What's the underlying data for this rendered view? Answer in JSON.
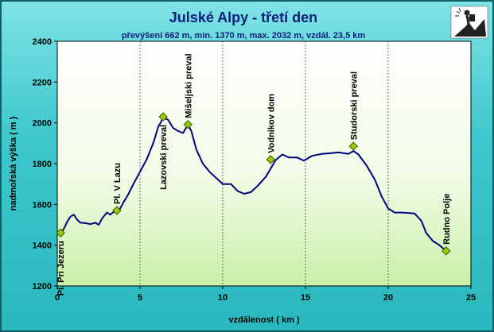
{
  "chart_data": {
    "type": "line",
    "title": "Julské Alpy - třetí den",
    "subtitle": "převýšení 662 m, min. 1370 m, max. 2032 m, vzdál. 23,5 km",
    "xlabel": "vzdálenost ( km )",
    "ylabel": "nadmořská výška ( m )",
    "xlim": [
      0,
      25
    ],
    "ylim": [
      1200,
      2400
    ],
    "xticks": [
      0,
      5,
      10,
      15,
      20,
      25
    ],
    "yticks": [
      1200,
      1400,
      1600,
      1800,
      2000,
      2200,
      2400
    ],
    "grid": "vertical dashed",
    "line_color": "#000080",
    "marker_color": "#99cc00",
    "profile": [
      [
        0.2,
        1460
      ],
      [
        0.4,
        1480
      ],
      [
        0.6,
        1515
      ],
      [
        0.8,
        1540
      ],
      [
        1.0,
        1550
      ],
      [
        1.2,
        1525
      ],
      [
        1.4,
        1510
      ],
      [
        1.7,
        1508
      ],
      [
        2.0,
        1503
      ],
      [
        2.3,
        1510
      ],
      [
        2.5,
        1500
      ],
      [
        2.7,
        1530
      ],
      [
        3.0,
        1560
      ],
      [
        3.2,
        1550
      ],
      [
        3.5,
        1568
      ],
      [
        3.8,
        1580
      ],
      [
        4.0,
        1610
      ],
      [
        4.3,
        1650
      ],
      [
        4.6,
        1700
      ],
      [
        5.0,
        1760
      ],
      [
        5.4,
        1820
      ],
      [
        5.8,
        1900
      ],
      [
        6.1,
        1980
      ],
      [
        6.4,
        2025
      ],
      [
        6.7,
        2015
      ],
      [
        7.0,
        1975
      ],
      [
        7.3,
        1960
      ],
      [
        7.6,
        1950
      ],
      [
        7.9,
        1992
      ],
      [
        8.1,
        1960
      ],
      [
        8.4,
        1870
      ],
      [
        8.8,
        1800
      ],
      [
        9.2,
        1760
      ],
      [
        9.6,
        1730
      ],
      [
        10.0,
        1700
      ],
      [
        10.5,
        1700
      ],
      [
        10.9,
        1665
      ],
      [
        11.3,
        1652
      ],
      [
        11.7,
        1660
      ],
      [
        12.1,
        1690
      ],
      [
        12.6,
        1735
      ],
      [
        13.2,
        1818
      ],
      [
        13.6,
        1845
      ],
      [
        14.0,
        1830
      ],
      [
        14.5,
        1830
      ],
      [
        14.9,
        1815
      ],
      [
        15.4,
        1838
      ],
      [
        16.0,
        1848
      ],
      [
        16.6,
        1852
      ],
      [
        17.0,
        1855
      ],
      [
        17.6,
        1848
      ],
      [
        17.9,
        1862
      ],
      [
        18.2,
        1845
      ],
      [
        18.7,
        1790
      ],
      [
        19.2,
        1720
      ],
      [
        19.6,
        1640
      ],
      [
        20.0,
        1580
      ],
      [
        20.4,
        1560
      ],
      [
        20.8,
        1560
      ],
      [
        21.2,
        1558
      ],
      [
        21.6,
        1555
      ],
      [
        22.0,
        1520
      ],
      [
        22.3,
        1460
      ],
      [
        22.7,
        1420
      ],
      [
        23.1,
        1400
      ],
      [
        23.5,
        1372
      ]
    ],
    "waypoints": [
      {
        "name": "Pl. Pri Jezeru",
        "x": 0.2,
        "y": 1460,
        "pos": "below"
      },
      {
        "name": "Pl. V Lazu",
        "x": 3.6,
        "y": 1570,
        "pos": "above"
      },
      {
        "name": "Lazovski preval",
        "x": 6.4,
        "y": 2030,
        "pos": "below"
      },
      {
        "name": "Mišeljski preval",
        "x": 7.9,
        "y": 1992,
        "pos": "above"
      },
      {
        "name": "Vodnikov dom",
        "x": 12.9,
        "y": 1820,
        "pos": "above"
      },
      {
        "name": "Studorski preval",
        "x": 17.9,
        "y": 1885,
        "pos": "above"
      },
      {
        "name": "Rudno Polje",
        "x": 23.5,
        "y": 1372,
        "pos": "above"
      }
    ]
  },
  "icon": "hiker-icon"
}
